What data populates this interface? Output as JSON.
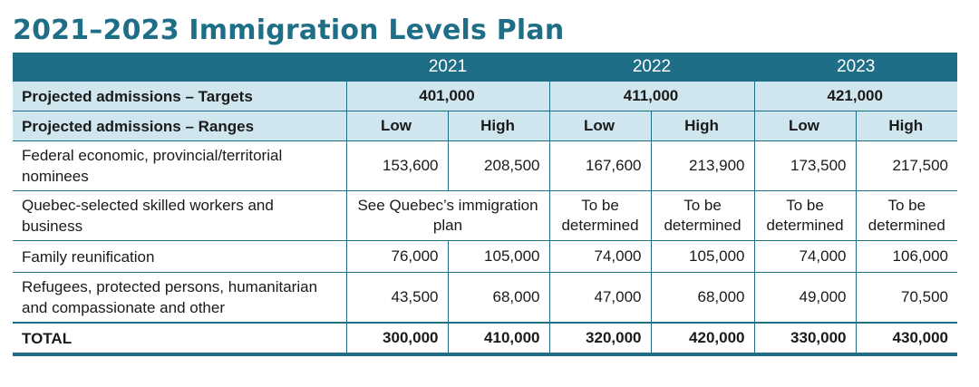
{
  "title": "2021–2023 Immigration Levels Plan",
  "years": [
    "2021",
    "2022",
    "2023"
  ],
  "targets": {
    "label": "Projected admissions – Targets",
    "values": [
      "401,000",
      "411,000",
      "421,000"
    ]
  },
  "ranges": {
    "label": "Projected admissions – Ranges",
    "low": "Low",
    "high": "High"
  },
  "rows": {
    "economic": {
      "label": "Federal economic, provincial/territorial nominees",
      "values": [
        "153,600",
        "208,500",
        "167,600",
        "213,900",
        "173,500",
        "217,500"
      ]
    },
    "quebec": {
      "label": "Quebec-selected skilled workers and business",
      "merged_2021": "See Quebec’s immigration plan",
      "values": [
        "To be determined",
        "To be determined",
        "To be determined",
        "To be determined"
      ]
    },
    "family": {
      "label": "Family reunification",
      "values": [
        "76,000",
        "105,000",
        "74,000",
        "105,000",
        "74,000",
        "106,000"
      ]
    },
    "refugees": {
      "label": "Refugees, protected persons, humanitarian and compassionate and other",
      "values": [
        "43,500",
        "68,000",
        "47,000",
        "68,000",
        "49,000",
        "70,500"
      ]
    },
    "total": {
      "label": "TOTAL",
      "values": [
        "300,000",
        "410,000",
        "320,000",
        "420,000",
        "330,000",
        "430,000"
      ]
    }
  },
  "colors": {
    "accent": "#1e6e87",
    "light_band": "#cfe6ee"
  }
}
